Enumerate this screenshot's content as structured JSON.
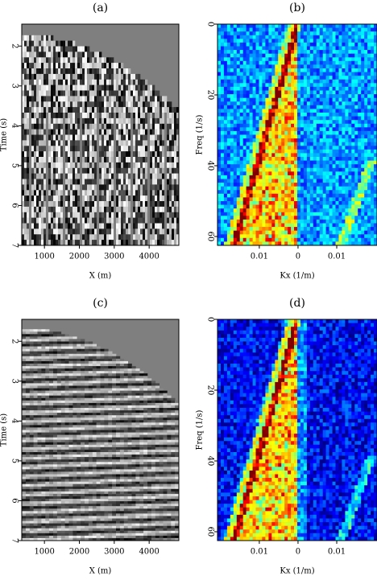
{
  "chart_data": [
    {
      "type": "heatmap",
      "title": "(a)",
      "xlabel": "X (m)",
      "ylabel": "Time (s)",
      "xlim": [
        350,
        4850
      ],
      "ylim": [
        1.45,
        7
      ],
      "xticks": [
        1000,
        2000,
        3000,
        4000
      ],
      "yticks": [
        2,
        3,
        4,
        5,
        6,
        7
      ]
    },
    {
      "type": "heatmap",
      "title": "(b)",
      "xlabel": "Kx (1/m)",
      "ylabel": "Freq (1/s)",
      "xlim": [
        -0.0208,
        0.0204
      ],
      "ylim": [
        0,
        62.5
      ],
      "xticks": [
        {
          "value": -0.01,
          "label": "0.01"
        },
        0,
        0.01
      ],
      "yticks": [
        0,
        20,
        40,
        60
      ]
    },
    {
      "type": "heatmap",
      "title": "(c)",
      "xlabel": "X (m)",
      "ylabel": "Time (s)",
      "xlim": [
        350,
        4850
      ],
      "ylim": [
        1.45,
        7
      ],
      "xticks": [
        1000,
        2000,
        3000,
        4000
      ],
      "yticks": [
        2,
        3,
        4,
        5,
        6,
        7
      ]
    },
    {
      "type": "heatmap",
      "title": "(d)",
      "xlabel": "Kx (1/m)",
      "ylabel": "Freq (1/s)",
      "xlim": [
        -0.0208,
        0.0204
      ],
      "ylim": [
        0,
        62.5
      ],
      "xticks": [
        {
          "value": -0.01,
          "label": "0.01"
        },
        0,
        0.01
      ],
      "yticks": [
        0,
        20,
        40,
        60
      ]
    }
  ]
}
